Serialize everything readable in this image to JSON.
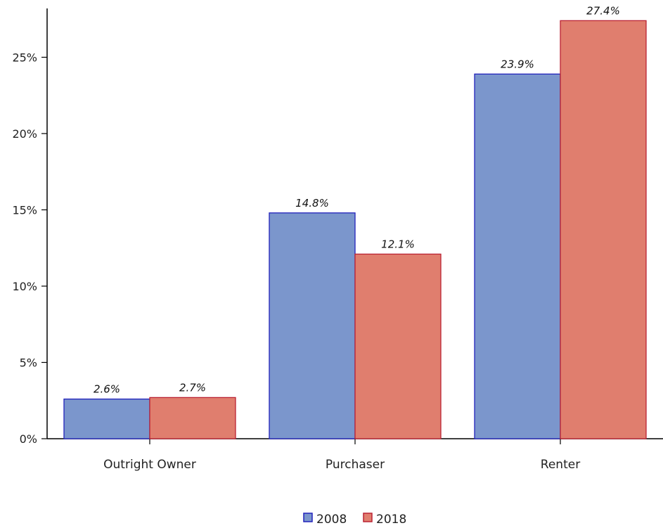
{
  "chart_data": {
    "type": "bar",
    "categories": [
      "Outright Owner",
      "Purchaser",
      "Renter"
    ],
    "series": [
      {
        "name": "2008",
        "values": [
          2.6,
          14.8,
          23.9
        ],
        "labels": [
          "2.6%",
          "14.8%",
          "23.9%"
        ],
        "fill": "#7b96cc",
        "stroke": "#2222bb"
      },
      {
        "name": "2018",
        "values": [
          2.7,
          12.1,
          27.4
        ],
        "labels": [
          "2.7%",
          "12.1%",
          "27.4%"
        ],
        "fill": "#e07e6e",
        "stroke": "#bb2233"
      }
    ],
    "yticks": [
      0,
      5,
      10,
      15,
      20,
      25
    ],
    "ytick_labels": [
      "0%",
      "5%",
      "10%",
      "15%",
      "20%",
      "25%"
    ],
    "ylim": [
      0,
      28.2
    ],
    "grid": false,
    "legend_position": "bottom-center"
  }
}
